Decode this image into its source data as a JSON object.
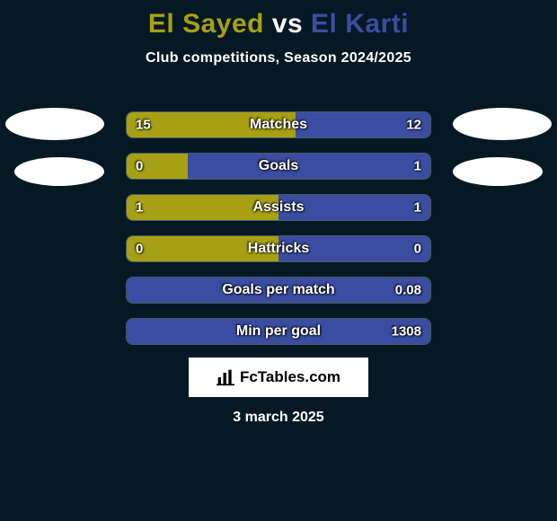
{
  "background_color": "#041924",
  "players": {
    "left": {
      "name": "El Sayed",
      "color": "#a7a015"
    },
    "right": {
      "name": "El Karti",
      "color": "#3a4da0"
    }
  },
  "title_vs": "vs",
  "subtitle": "Club competitions, Season 2024/2025",
  "track_color": "#0c2432",
  "text_color": "#ffffff",
  "label_fontsize": 15,
  "rows": [
    {
      "label": "Matches",
      "left_value": "15",
      "right_value": "12",
      "left_pct": 55.6,
      "right_pct": 44.4
    },
    {
      "label": "Goals",
      "left_value": "0",
      "right_value": "1",
      "left_pct": 20.0,
      "right_pct": 80.0
    },
    {
      "label": "Assists",
      "left_value": "1",
      "right_value": "1",
      "left_pct": 50.0,
      "right_pct": 50.0
    },
    {
      "label": "Hattricks",
      "left_value": "0",
      "right_value": "0",
      "left_pct": 50.0,
      "right_pct": 50.0
    },
    {
      "label": "Goals per match",
      "left_value": "",
      "right_value": "0.08",
      "left_pct": 0.0,
      "right_pct": 100.0
    },
    {
      "label": "Min per goal",
      "left_value": "",
      "right_value": "1308",
      "left_pct": 0.0,
      "right_pct": 100.0
    }
  ],
  "badge_text": "FcTables.com",
  "footer_date": "3 march 2025"
}
